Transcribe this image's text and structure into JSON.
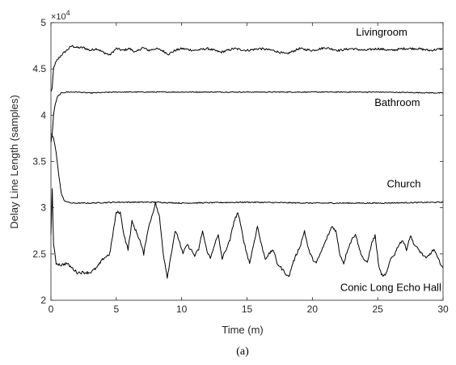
{
  "caption": "(a)",
  "chart_data": {
    "type": "line",
    "title": "",
    "xlabel": "Time (m)",
    "ylabel": "Delay Line Length (samples)",
    "xlim": [
      0,
      30
    ],
    "ylim": [
      2,
      5
    ],
    "y_multiplier_label": "×10",
    "y_multiplier_exp": "4",
    "y_scale_factor": 10000,
    "x_ticks": [
      0,
      5,
      10,
      15,
      20,
      25,
      30
    ],
    "x_tick_labels": [
      "0",
      "5",
      "10",
      "15",
      "20",
      "25",
      "30"
    ],
    "y_ticks": [
      2,
      2.5,
      3,
      3.5,
      4,
      4.5,
      5
    ],
    "y_tick_labels": [
      "2",
      "2.5",
      "3",
      "3.5",
      "4",
      "4.5",
      "5"
    ],
    "grid": false,
    "legend": "none",
    "line_color": "#000000",
    "series": [
      {
        "name": "Livingroom",
        "label_at": [
          25.3,
          4.86
        ],
        "x": [
          0,
          0.1,
          0.2,
          0.3,
          0.5,
          0.8,
          1.2,
          1.6,
          2,
          2.5,
          3,
          3.5,
          4,
          4.5,
          5,
          5.5,
          6,
          6.5,
          7,
          7.5,
          8,
          8.5,
          9,
          9.5,
          10,
          11,
          12,
          13,
          14,
          15,
          16,
          17,
          18,
          19,
          20,
          21,
          22,
          23,
          24,
          25,
          26,
          27,
          28,
          29,
          30
        ],
        "y": [
          4.25,
          4.3,
          4.5,
          4.55,
          4.6,
          4.65,
          4.7,
          4.75,
          4.73,
          4.73,
          4.7,
          4.72,
          4.68,
          4.65,
          4.72,
          4.7,
          4.72,
          4.68,
          4.73,
          4.7,
          4.72,
          4.7,
          4.66,
          4.7,
          4.72,
          4.7,
          4.72,
          4.68,
          4.72,
          4.7,
          4.72,
          4.7,
          4.66,
          4.72,
          4.7,
          4.73,
          4.7,
          4.72,
          4.7,
          4.72,
          4.7,
          4.72,
          4.72,
          4.7,
          4.72
        ],
        "noise": 0.012
      },
      {
        "name": "Bathroom",
        "label_at": [
          26.5,
          4.1
        ],
        "x": [
          0,
          0.1,
          0.2,
          0.3,
          0.5,
          0.8,
          1.2,
          1.6,
          2,
          3,
          5,
          8,
          10,
          15,
          20,
          25,
          30
        ],
        "y": [
          3.7,
          3.8,
          4.0,
          4.1,
          4.2,
          4.24,
          4.25,
          4.25,
          4.25,
          4.24,
          4.25,
          4.25,
          4.25,
          4.25,
          4.25,
          4.25,
          4.24
        ],
        "noise": 0.005
      },
      {
        "name": "Church",
        "label_at": [
          27.0,
          3.22
        ],
        "x": [
          0,
          0.1,
          0.2,
          0.4,
          0.6,
          0.8,
          1.0,
          1.3,
          1.6,
          2,
          3,
          5,
          8,
          10,
          15,
          20,
          25,
          30
        ],
        "y": [
          3.8,
          3.78,
          3.75,
          3.6,
          3.35,
          3.15,
          3.08,
          3.06,
          3.05,
          3.05,
          3.05,
          3.06,
          3.06,
          3.05,
          3.06,
          3.05,
          3.05,
          3.06
        ],
        "noise": 0.006
      },
      {
        "name": "Conic Long Echo Hall",
        "label_at": [
          26.0,
          2.1
        ],
        "x": [
          0,
          0.1,
          0.2,
          0.4,
          0.8,
          1.2,
          1.6,
          2,
          2.5,
          3,
          3.5,
          4,
          4.5,
          5,
          5.3,
          5.6,
          5.9,
          6.2,
          6.5,
          6.8,
          7.1,
          7.4,
          7.7,
          8,
          8.3,
          8.6,
          8.9,
          9.2,
          9.5,
          9.8,
          10.1,
          10.4,
          10.7,
          11,
          11.3,
          11.6,
          11.9,
          12.2,
          12.5,
          12.8,
          13.1,
          13.4,
          13.7,
          14,
          14.3,
          14.6,
          14.9,
          15.2,
          15.5,
          15.8,
          16.1,
          16.4,
          16.7,
          17,
          17.3,
          17.6,
          17.9,
          18.2,
          18.5,
          18.8,
          19.1,
          19.4,
          19.7,
          20,
          20.3,
          20.6,
          20.9,
          21.2,
          21.5,
          21.8,
          22.1,
          22.4,
          22.7,
          23,
          23.3,
          23.6,
          23.9,
          24.2,
          24.5,
          24.8,
          25.1,
          25.4,
          25.7,
          26,
          26.3,
          26.6,
          26.9,
          27.2,
          27.5,
          27.8,
          28.1,
          28.4,
          28.7,
          29,
          29.3,
          29.6,
          30
        ],
        "y": [
          2.7,
          3.2,
          2.6,
          2.4,
          2.38,
          2.4,
          2.35,
          2.3,
          2.3,
          2.3,
          2.35,
          2.45,
          2.5,
          2.95,
          2.95,
          2.7,
          2.55,
          2.85,
          2.75,
          2.65,
          2.5,
          2.75,
          2.9,
          3.05,
          2.9,
          2.5,
          2.25,
          2.5,
          2.75,
          2.65,
          2.5,
          2.6,
          2.55,
          2.48,
          2.55,
          2.75,
          2.55,
          2.45,
          2.6,
          2.7,
          2.45,
          2.55,
          2.65,
          2.85,
          2.95,
          2.75,
          2.55,
          2.4,
          2.6,
          2.8,
          2.6,
          2.45,
          2.5,
          2.55,
          2.4,
          2.35,
          2.3,
          2.25,
          2.4,
          2.5,
          2.6,
          2.75,
          2.55,
          2.45,
          2.4,
          2.5,
          2.6,
          2.7,
          2.8,
          2.75,
          2.5,
          2.4,
          2.55,
          2.65,
          2.72,
          2.55,
          2.45,
          2.4,
          2.6,
          2.7,
          2.35,
          2.25,
          2.3,
          2.45,
          2.5,
          2.6,
          2.65,
          2.55,
          2.7,
          2.6,
          2.55,
          2.5,
          2.45,
          2.5,
          2.55,
          2.45,
          2.35
        ],
        "noise": 0.015
      }
    ]
  }
}
